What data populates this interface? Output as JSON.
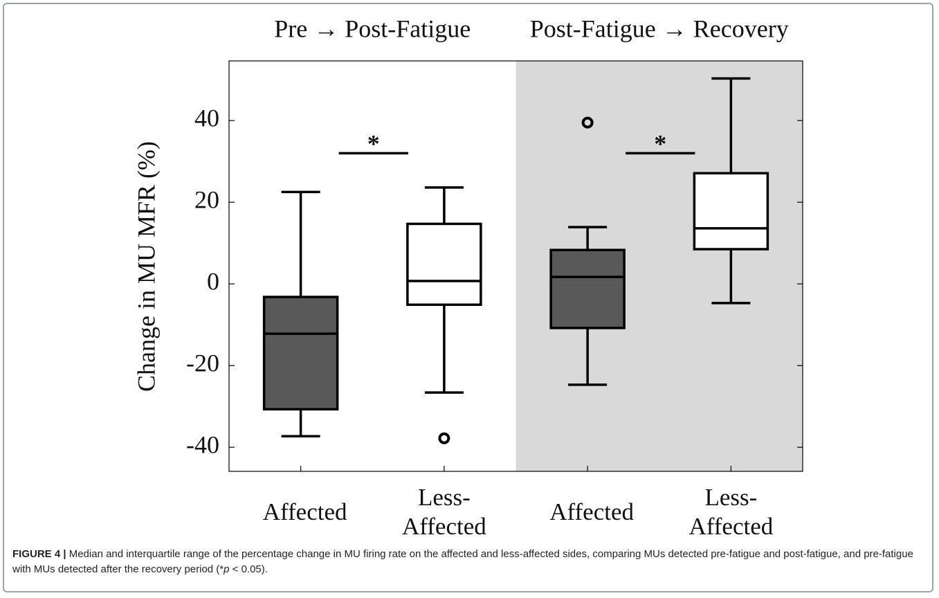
{
  "chart_data": {
    "type": "box",
    "ylabel": "Change in MU MFR (%)",
    "ylim": [
      -45.9,
      54.6
    ],
    "yticks": [
      -40,
      -20,
      0,
      20,
      40
    ],
    "panels": [
      {
        "title": "Pre → Post-Fatigue",
        "background": "#ffffff",
        "boxes": [
          {
            "category": "Affected",
            "color": "#595959",
            "whislo": -37.3,
            "q1": -30.7,
            "med": -12.2,
            "q3": -3.2,
            "whishi": 22.5,
            "fliers": []
          },
          {
            "category": "Less-Affected",
            "color": "#ffffff",
            "whislo": -26.6,
            "q1": -5.1,
            "med": 0.7,
            "q3": 14.7,
            "whishi": 23.6,
            "fliers": [
              -37.8
            ]
          }
        ],
        "significance": {
          "label": "*",
          "y": 32
        }
      },
      {
        "title": "Post-Fatigue → Recovery",
        "background": "#d9d9d9",
        "boxes": [
          {
            "category": "Affected",
            "color": "#595959",
            "whislo": -24.7,
            "q1": -10.8,
            "med": 1.7,
            "q3": 8.3,
            "whishi": 13.9,
            "fliers": [
              39.5
            ]
          },
          {
            "category": "Less-Affected",
            "color": "#ffffff",
            "whislo": -4.7,
            "q1": 8.5,
            "med": 13.6,
            "q3": 27.1,
            "whishi": 50.3,
            "fliers": []
          }
        ],
        "significance": {
          "label": "*",
          "y": 32
        }
      }
    ]
  },
  "caption": {
    "label": "FIGURE 4 |",
    "text": "Median and interquartile range of the percentage change in MU firing rate on the affected and less-affected sides, comparing MUs detected pre-fatigue and post-fatigue, and pre-fatigue with MUs detected after the recovery period (*",
    "italic": "p",
    "tail": " < 0.05)."
  }
}
